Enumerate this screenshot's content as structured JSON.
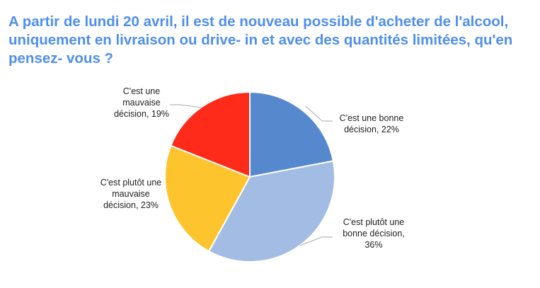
{
  "chart_data": {
    "type": "pie",
    "title": "A partir de lundi 20 avril, il est de nouveau possible d'acheter de l'alcool, uniquement en livraison ou drive- in et avec des quantités limitées, qu'en pensez- vous ?",
    "start_angle": "12 o'clock",
    "direction": "clockwise",
    "slices": [
      {
        "label": "C'est une bonne décision",
        "value": 22,
        "data_label": [
          "C'est une bonne",
          "décision, 22%"
        ],
        "color": "#5588cc"
      },
      {
        "label": "C'est plutôt une bonne décision",
        "value": 36,
        "data_label": [
          "C'est plutôt une",
          "bonne décision,",
          "36%"
        ],
        "color": "#a2bce3"
      },
      {
        "label": "C'est plutôt une mauvaise décision",
        "value": 23,
        "data_label": [
          "C'est plutôt une",
          "mauvaise",
          "décision, 23%"
        ],
        "color": "#fec42d"
      },
      {
        "label": "C'est une mauvaise décision",
        "value": 19,
        "data_label": [
          "C'est une",
          "mauvaise",
          "décision, 19%"
        ],
        "color": "#fe2a1a"
      }
    ]
  }
}
